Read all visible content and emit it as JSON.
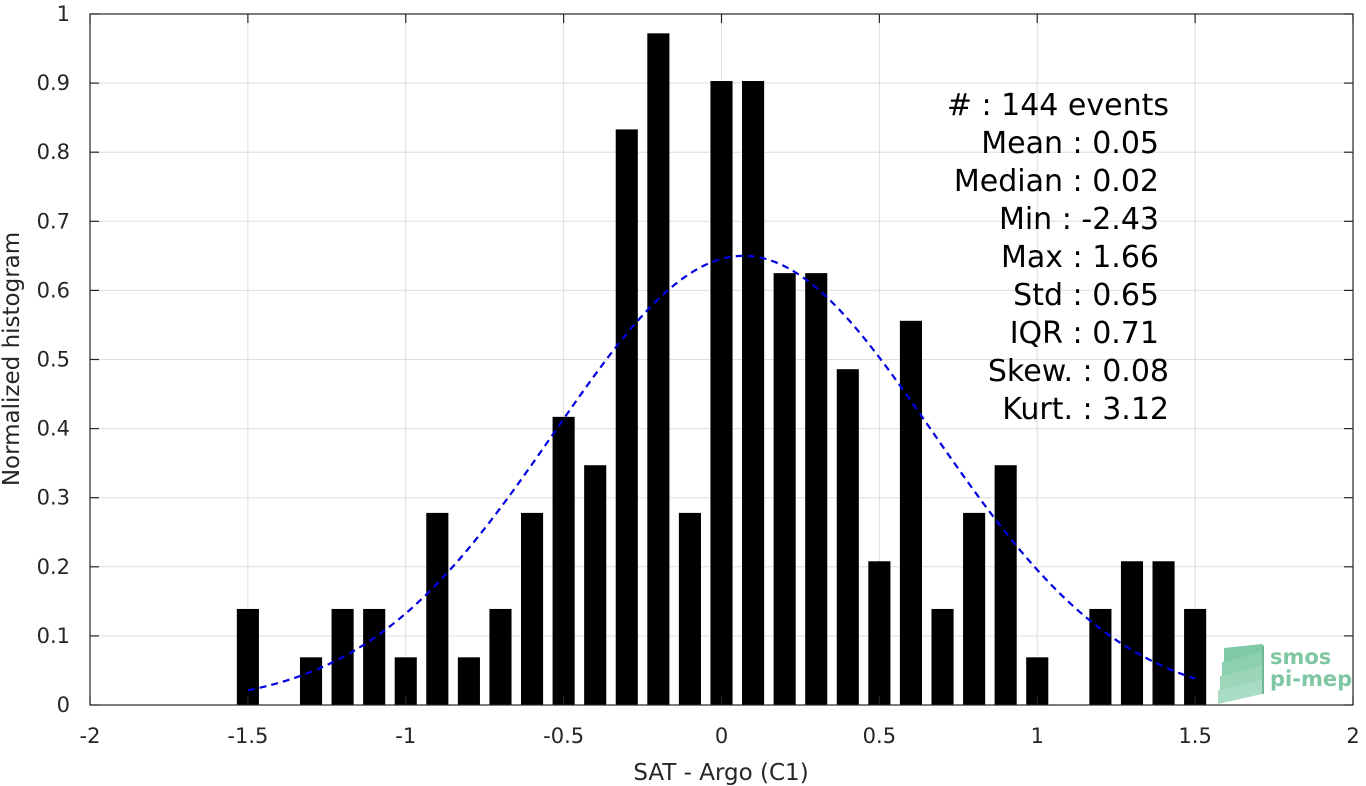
{
  "chart_data": {
    "type": "bar",
    "xlabel": "SAT - Argo (C1)",
    "ylabel": "Normalized histogram",
    "xlim": [
      -2,
      2
    ],
    "ylim": [
      0,
      1
    ],
    "x_ticks": [
      -2,
      -1.5,
      -1,
      -0.5,
      0,
      0.5,
      1,
      1.5,
      2
    ],
    "x_tick_labels": [
      "-2",
      "-1.5",
      "-1",
      "-0.5",
      "0",
      "0.5",
      "1",
      "1.5",
      "2"
    ],
    "y_ticks": [
      0,
      0.1,
      0.2,
      0.3,
      0.4,
      0.5,
      0.6,
      0.7,
      0.8,
      0.9,
      1
    ],
    "y_tick_labels": [
      "0",
      "0.1",
      "0.2",
      "0.3",
      "0.4",
      "0.5",
      "0.6",
      "0.7",
      "0.8",
      "0.9",
      "1"
    ],
    "grid": true,
    "bar_color": "#000000",
    "curve_color": "#0000e0",
    "bar_width": 0.07,
    "bars": [
      {
        "x": -1.5,
        "y": 0.139
      },
      {
        "x": -1.3,
        "y": 0.069
      },
      {
        "x": -1.2,
        "y": 0.139
      },
      {
        "x": -1.1,
        "y": 0.139
      },
      {
        "x": -1.0,
        "y": 0.069
      },
      {
        "x": -0.9,
        "y": 0.278
      },
      {
        "x": -0.8,
        "y": 0.069
      },
      {
        "x": -0.7,
        "y": 0.139
      },
      {
        "x": -0.6,
        "y": 0.278
      },
      {
        "x": -0.5,
        "y": 0.417
      },
      {
        "x": -0.4,
        "y": 0.347
      },
      {
        "x": -0.3,
        "y": 0.833
      },
      {
        "x": -0.2,
        "y": 0.972
      },
      {
        "x": -0.1,
        "y": 0.278
      },
      {
        "x": 0.0,
        "y": 0.903
      },
      {
        "x": 0.1,
        "y": 0.903
      },
      {
        "x": 0.2,
        "y": 0.625
      },
      {
        "x": 0.3,
        "y": 0.625
      },
      {
        "x": 0.4,
        "y": 0.486
      },
      {
        "x": 0.5,
        "y": 0.208
      },
      {
        "x": 0.6,
        "y": 0.556
      },
      {
        "x": 0.7,
        "y": 0.139
      },
      {
        "x": 0.8,
        "y": 0.278
      },
      {
        "x": 0.9,
        "y": 0.347
      },
      {
        "x": 1.0,
        "y": 0.069
      },
      {
        "x": 1.2,
        "y": 0.139
      },
      {
        "x": 1.3,
        "y": 0.208
      },
      {
        "x": 1.4,
        "y": 0.208
      },
      {
        "x": 1.5,
        "y": 0.139
      }
    ],
    "fit_curve": {
      "style": "dashed",
      "mean": 0.07,
      "std": 0.6,
      "peak": 0.65,
      "x_range": [
        -1.5,
        1.5
      ]
    },
    "stats": [
      {
        "label": "#  : 144 events"
      },
      {
        "label": "Mean : 0.05"
      },
      {
        "label": "Median : 0.02"
      },
      {
        "label": "Min : -2.43"
      },
      {
        "label": "Max : 1.66"
      },
      {
        "label": "Std : 0.65"
      },
      {
        "label": "IQR : 0.71"
      },
      {
        "label": "Skew. : 0.08"
      },
      {
        "label": "Kurt. : 3.12"
      }
    ]
  },
  "logo": {
    "line1": "smos",
    "line2": "pi-mep"
  }
}
